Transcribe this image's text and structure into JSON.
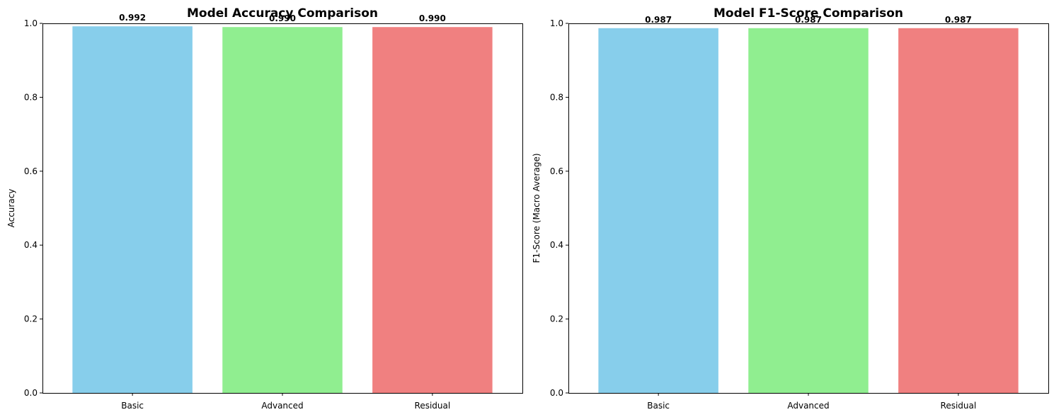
{
  "chart_data": [
    {
      "type": "bar",
      "title": "Model Accuracy Comparison",
      "xlabel": "",
      "ylabel": "Accuracy",
      "categories": [
        "Basic",
        "Advanced",
        "Residual"
      ],
      "values": [
        0.992,
        0.99,
        0.99
      ],
      "data_labels": [
        "0.992",
        "0.990",
        "0.990"
      ],
      "colors": [
        "#87ceeb",
        "#90ee90",
        "#f08080"
      ],
      "ylim": [
        0,
        1.0
      ],
      "yticks": [
        0.0,
        0.2,
        0.4,
        0.6,
        0.8,
        1.0
      ],
      "ytick_labels": [
        "0.0",
        "0.2",
        "0.4",
        "0.6",
        "0.8",
        "1.0"
      ],
      "grid": false,
      "legend": "none"
    },
    {
      "type": "bar",
      "title": "Model F1-Score Comparison",
      "xlabel": "",
      "ylabel": "F1-Score (Macro Average)",
      "categories": [
        "Basic",
        "Advanced",
        "Residual"
      ],
      "values": [
        0.987,
        0.987,
        0.987
      ],
      "data_labels": [
        "0.987",
        "0.987",
        "0.987"
      ],
      "colors": [
        "#87ceeb",
        "#90ee90",
        "#f08080"
      ],
      "ylim": [
        0,
        1.0
      ],
      "yticks": [
        0.0,
        0.2,
        0.4,
        0.6,
        0.8,
        1.0
      ],
      "ytick_labels": [
        "0.0",
        "0.2",
        "0.4",
        "0.6",
        "0.8",
        "1.0"
      ],
      "grid": false,
      "legend": "none"
    }
  ]
}
